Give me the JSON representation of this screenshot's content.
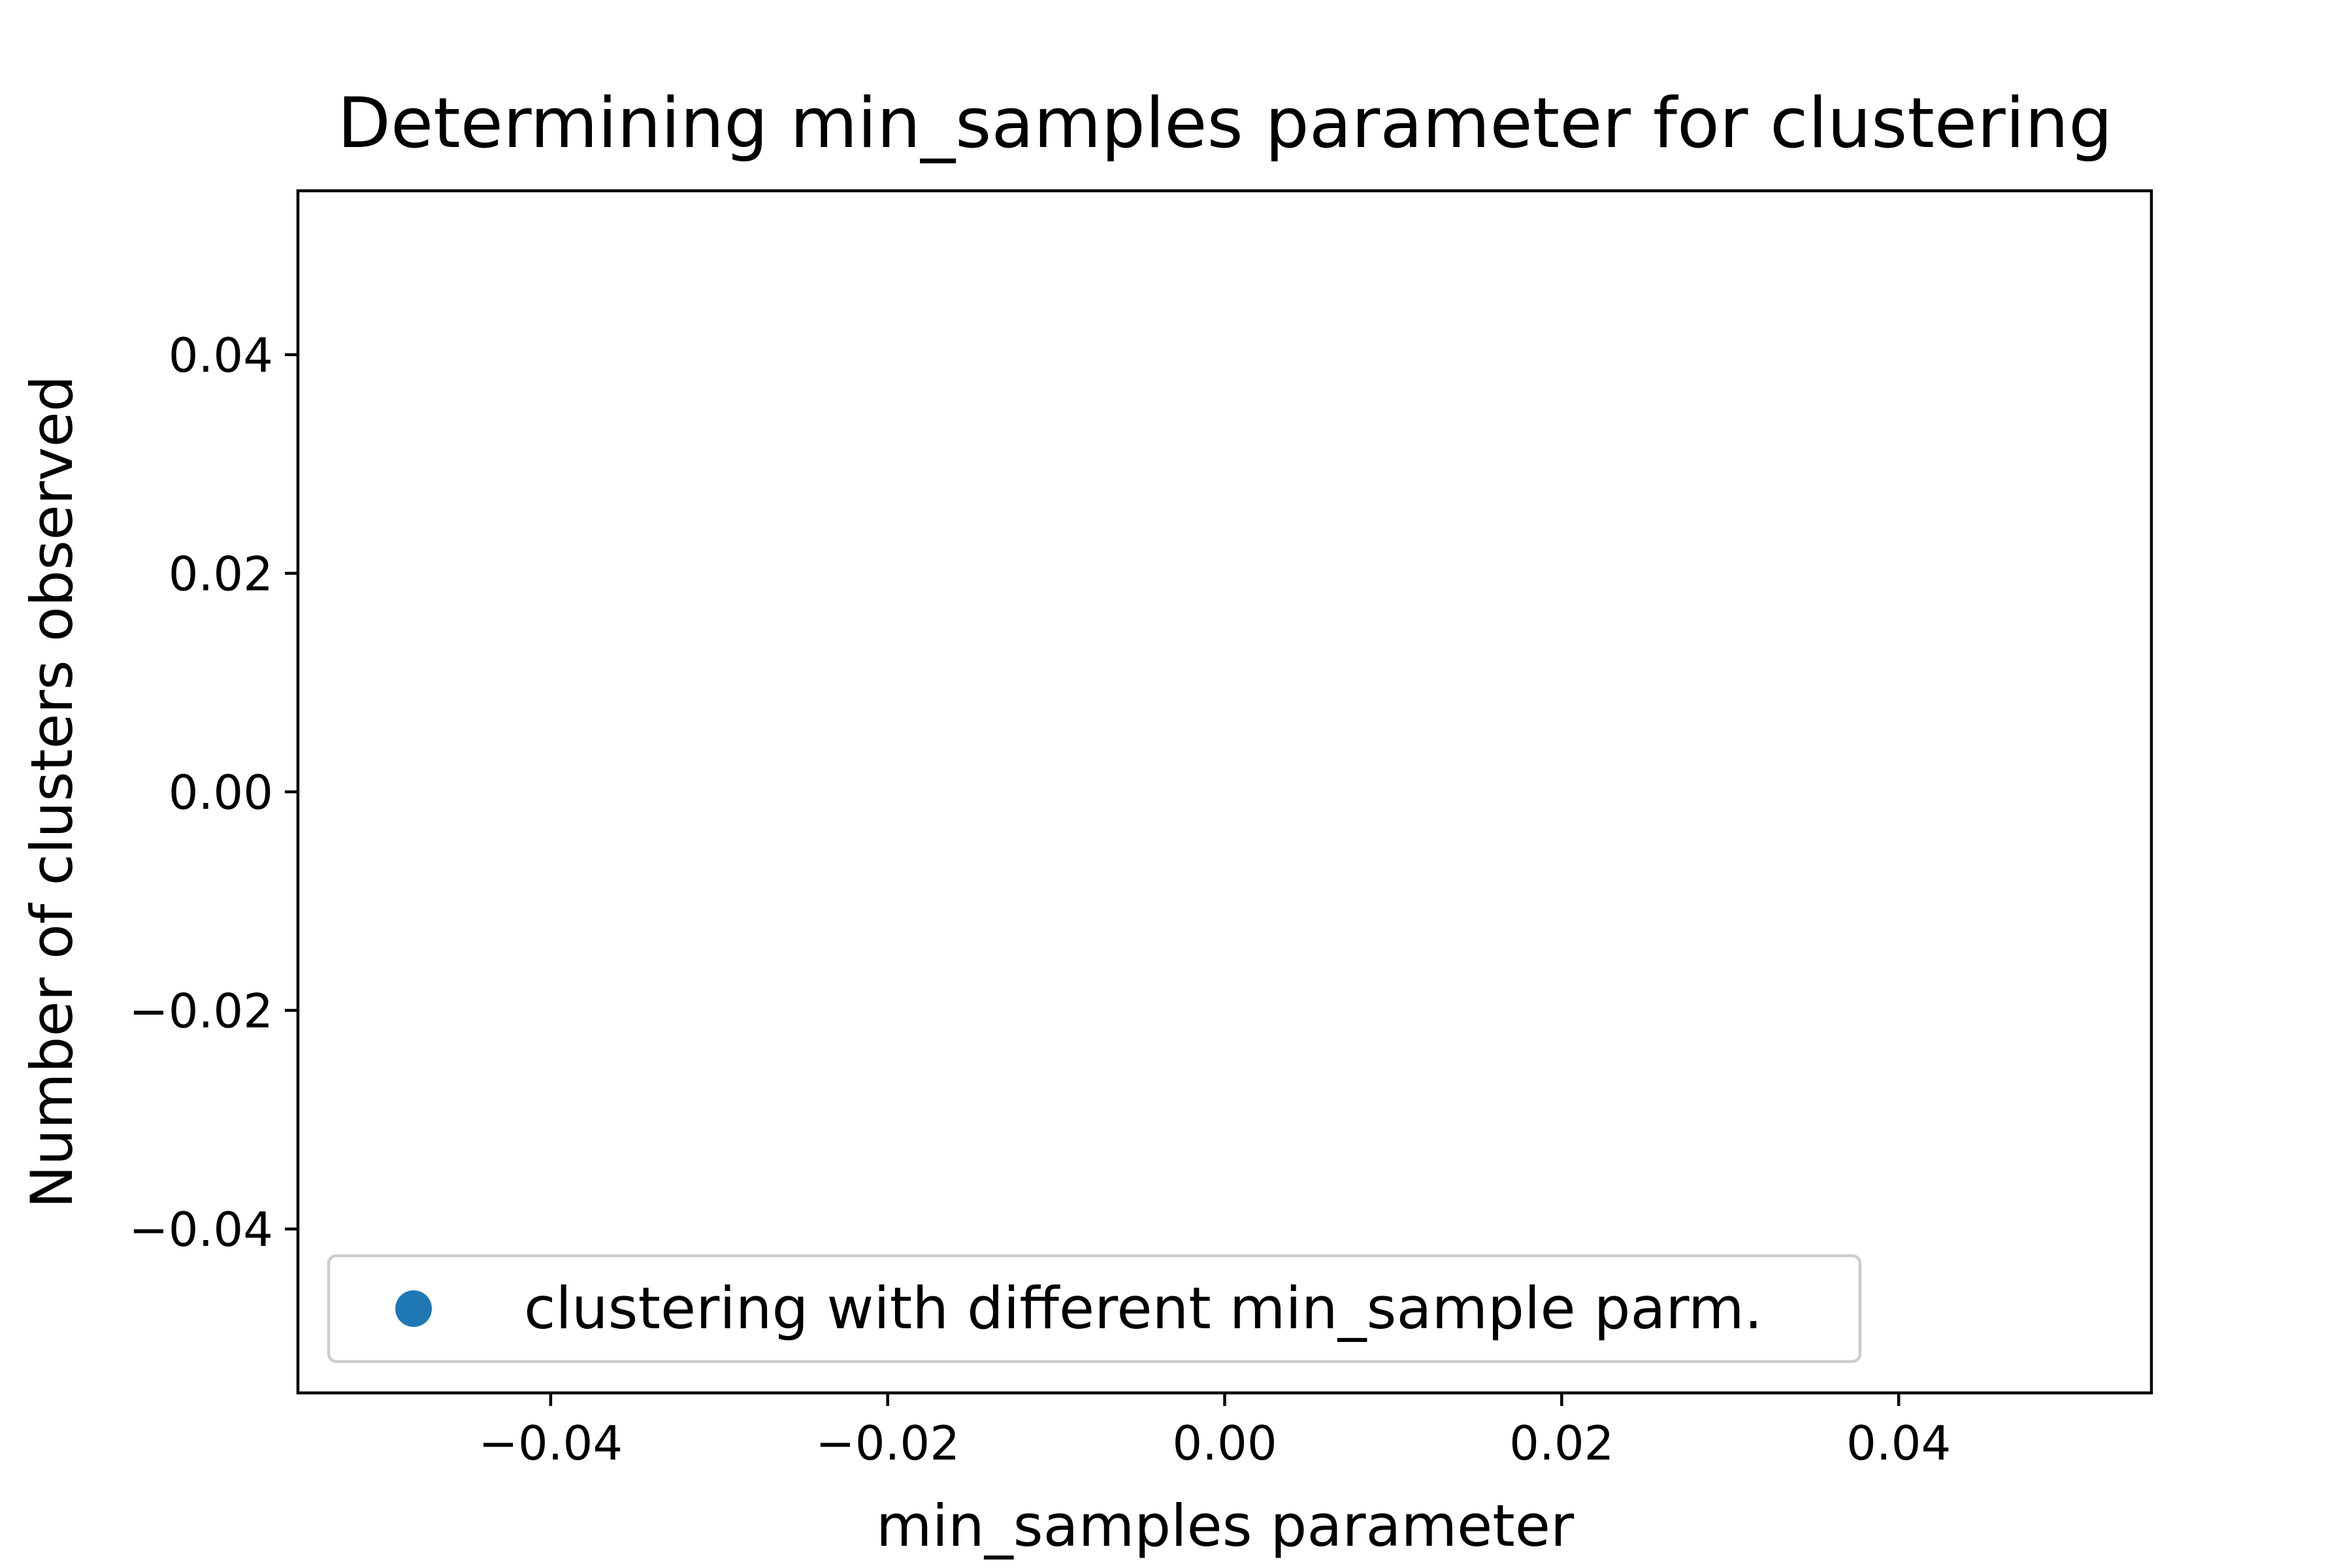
{
  "chart_data": {
    "type": "scatter",
    "title": "Determining min_samples parameter for clustering",
    "xlabel": "min_samples parameter",
    "ylabel": "Number of clusters observed",
    "xlim": [
      -0.055,
      0.055
    ],
    "ylim": [
      -0.055,
      0.055
    ],
    "xticks": [
      -0.04,
      -0.02,
      0.0,
      0.02,
      0.04
    ],
    "yticks": [
      -0.04,
      -0.02,
      0.0,
      0.02,
      0.04
    ],
    "xtick_labels": [
      "−0.04",
      "−0.02",
      "0.00",
      "0.02",
      "0.04"
    ],
    "ytick_labels": [
      "−0.04",
      "−0.02",
      "0.00",
      "0.02",
      "0.04"
    ],
    "grid": false,
    "legend_position": "lower-left",
    "series": [
      {
        "name": "clustering with different min_sample parm.",
        "color": "#1f77b4",
        "x": [],
        "y": []
      }
    ]
  }
}
